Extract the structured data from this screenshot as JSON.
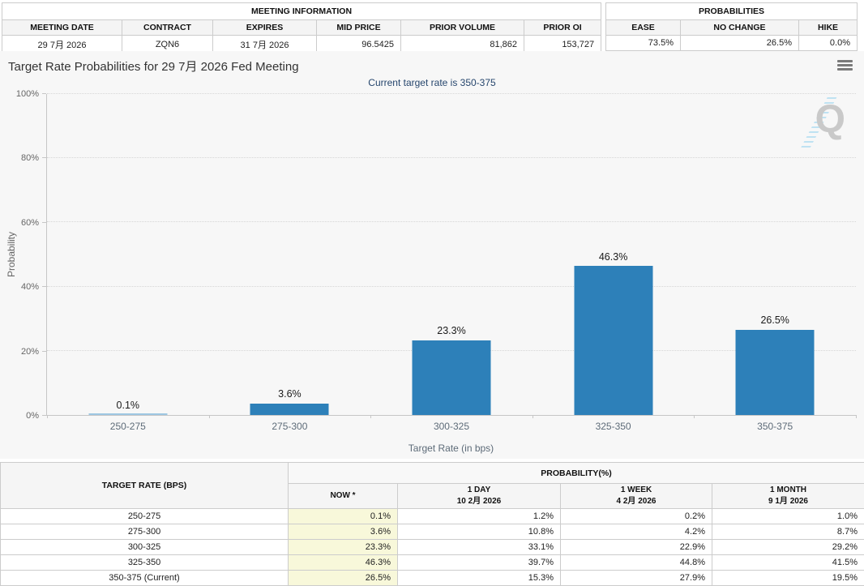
{
  "meeting_info": {
    "title": "MEETING INFORMATION",
    "columns": [
      "MEETING DATE",
      "CONTRACT",
      "EXPIRES",
      "MID PRICE",
      "PRIOR VOLUME",
      "PRIOR OI"
    ],
    "values": [
      "29 7月 2026",
      "ZQN6",
      "31 7月 2026",
      "96.5425",
      "81,862",
      "153,727"
    ]
  },
  "probabilities_summary": {
    "title": "PROBABILITIES",
    "columns": [
      "EASE",
      "NO CHANGE",
      "HIKE"
    ],
    "values": [
      "73.5%",
      "26.5%",
      "0.0%"
    ]
  },
  "chart": {
    "title": "Target Rate Probabilities for 29 7月 2026 Fed Meeting",
    "subtitle": "Current target rate is 350-375",
    "menu_icon": "hamburger-icon",
    "watermark_letter": "Q"
  },
  "chart_data": {
    "type": "bar",
    "title": "Target Rate Probabilities for 29 7月 2026 Fed Meeting",
    "subtitle": "Current target rate is 350-375",
    "categories": [
      "250-275",
      "275-300",
      "300-325",
      "325-350",
      "350-375"
    ],
    "values": [
      0.1,
      3.6,
      23.3,
      46.3,
      26.5
    ],
    "data_labels": [
      "0.1%",
      "3.6%",
      "23.3%",
      "46.3%",
      "26.5%"
    ],
    "xlabel": "Target Rate (in bps)",
    "ylabel": "Probability",
    "ylim": [
      0,
      100
    ],
    "ytick_labels": [
      "0%",
      "20%",
      "40%",
      "60%",
      "80%",
      "100%"
    ],
    "grid": "dotted-horizontal",
    "legend": "none",
    "bar_color": "#2d80b9",
    "bar_color_light": "#9ec7e2"
  },
  "probability_table": {
    "col_rate_header": "TARGET RATE (BPS)",
    "group_header": "PROBABILITY(%)",
    "subheaders": [
      {
        "line1": "NOW *",
        "line2": ""
      },
      {
        "line1": "1 DAY",
        "line2": "10 2月 2026"
      },
      {
        "line1": "1 WEEK",
        "line2": "4 2月 2026"
      },
      {
        "line1": "1 MONTH",
        "line2": "9 1月 2026"
      }
    ],
    "rows": [
      {
        "rate": "250-275",
        "now": "0.1%",
        "one_day": "1.2%",
        "one_week": "0.2%",
        "one_month": "1.0%"
      },
      {
        "rate": "275-300",
        "now": "3.6%",
        "one_day": "10.8%",
        "one_week": "4.2%",
        "one_month": "8.7%"
      },
      {
        "rate": "300-325",
        "now": "23.3%",
        "one_day": "33.1%",
        "one_week": "22.9%",
        "one_month": "29.2%"
      },
      {
        "rate": "325-350",
        "now": "46.3%",
        "one_day": "39.7%",
        "one_week": "44.8%",
        "one_month": "41.5%"
      },
      {
        "rate": "350-375 (Current)",
        "now": "26.5%",
        "one_day": "15.3%",
        "one_week": "27.9%",
        "one_month": "19.5%"
      }
    ]
  }
}
